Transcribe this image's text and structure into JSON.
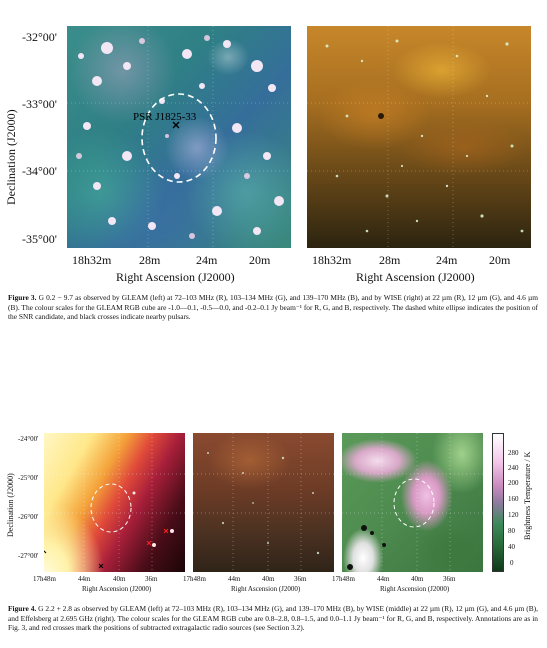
{
  "fig3": {
    "ytick_labels": [
      "-32°00'",
      "-33°00'",
      "-34°00'",
      "-35°00'"
    ],
    "xtick_labels_left": [
      "18h32m",
      "28m",
      "24m",
      "20m"
    ],
    "xtick_labels_right": [
      "18h32m",
      "28m",
      "24m",
      "20m"
    ],
    "ylabel": "Declination (J2000)",
    "xlabel_left": "Right Ascension (J2000)",
    "xlabel_right": "Right Ascension (J2000)",
    "pulsar_label": "PSR J1825-33",
    "caption_label": "Figure 3.",
    "caption_text": " G 0.2 − 9.7 as observed by GLEAM (left) at 72–103 MHz (R), 103–134 MHz (G), and 139–170 MHz (B), and by WISE (right) at 22 µm (R), 12 µm (G), and 4.6 µm (B). The colour scales for the GLEAM RGB cube are -1.0—0.1, -0.5—0.0, and -0.2–0.1 Jy beam⁻¹ for R, G, and B, respectively. The dashed white ellipse indicates the position of the SNR candidate, and black crosses indicate nearby pulsars."
  },
  "fig4": {
    "ytick_labels": [
      "-24°00'",
      "-25°00'",
      "-26°00'",
      "-27°00'"
    ],
    "xtick_labels_1": [
      "17h48m",
      "44m",
      "40m",
      "36m"
    ],
    "xtick_labels_2": [
      "17h48m",
      "44m",
      "40m",
      "36m"
    ],
    "xtick_labels_3": [
      "17h48m",
      "44m",
      "40m",
      "36m"
    ],
    "ylabel": "Declination (J2000)",
    "xlabel_1": "Right Ascension (J2000)",
    "xlabel_2": "Right Ascension (J2000)",
    "xlabel_3": "Right Ascension (J2000)",
    "colorbar_label": "Brightness Temperature / K",
    "colorbar_ticks": [
      "280",
      "240",
      "200",
      "160",
      "120",
      "80",
      "40",
      "0"
    ],
    "caption_label": "Figure 4.",
    "caption_text": " G 2.2 + 2.8 as observed by GLEAM (left) at 72–103 MHz (R), 103–134 MHz (G), and 139–170 MHz (B), by WISE (middle) at 22 µm (R), 12 µm (G), and 4.6 µm (B), and Effelsberg at 2.695 GHz (right). The colour scales for the GLEAM RGB cube are 0.8–2.8, 0.8–1.5, and 0.0–1.1 Jy beam⁻¹ for R, G, and B, respectively. Annotations are as in Fig. 3, and red crosses mark the positions of subtracted extragalactic radio sources (see Section 3.2)."
  },
  "colors": {
    "gleam3_base": "#2f7f86",
    "wise_base": "#8a5a10",
    "gleam4_hot": "#fff9c8",
    "effelsberg_base": "#4d8a4e"
  }
}
